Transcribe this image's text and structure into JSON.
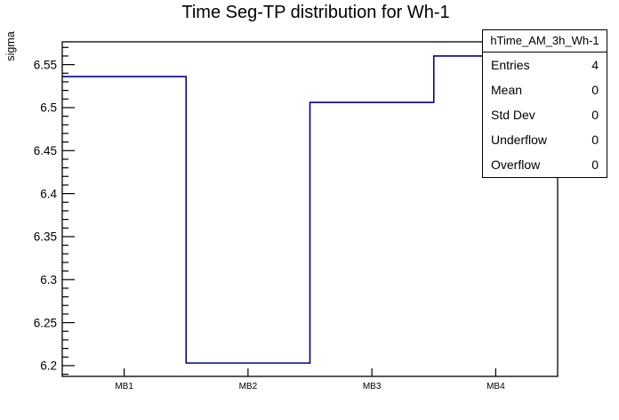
{
  "title": "Time Seg-TP distribution for Wh-1",
  "y_axis": {
    "label": "sigma"
  },
  "x_axis": {
    "labels": [
      "MB1",
      "MB2",
      "MB3",
      "MB4"
    ]
  },
  "stats": {
    "header": "hTime_AM_3h_Wh-1",
    "rows": [
      {
        "label": "Entries",
        "value": "4"
      },
      {
        "label": "Mean",
        "value": "0"
      },
      {
        "label": "Std Dev",
        "value": "0"
      },
      {
        "label": "Underflow",
        "value": "0"
      },
      {
        "label": "Overflow",
        "value": "0"
      }
    ]
  },
  "colors": {
    "histogram_line": "#000090",
    "frame": "#000000",
    "text": "#000000",
    "background": "#ffffff"
  },
  "chart_data": {
    "type": "line",
    "subtype": "step-histogram",
    "title": "Time Seg-TP distribution for Wh-1",
    "xlabel": "",
    "ylabel": "sigma",
    "categories": [
      "MB1",
      "MB2",
      "MB3",
      "MB4"
    ],
    "values": [
      6.536,
      6.203,
      6.506,
      6.56
    ],
    "ylim": [
      6.1875,
      6.5765
    ],
    "y_major_ticks": [
      6.2,
      6.25,
      6.3,
      6.35,
      6.4,
      6.45,
      6.5,
      6.55
    ],
    "y_minor_step": 0.01,
    "grid": false,
    "legend_position": "none",
    "stats_box": {
      "name": "hTime_AM_3h_Wh-1",
      "entries": 4,
      "mean": 0,
      "std_dev": 0,
      "underflow": 0,
      "overflow": 0
    }
  }
}
